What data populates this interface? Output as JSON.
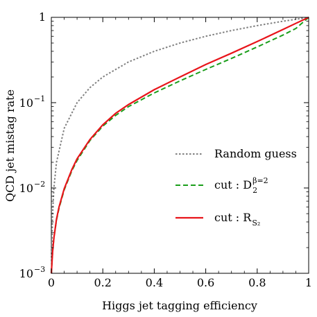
{
  "chart_data": {
    "type": "line",
    "title": "",
    "xlabel": "Higgs jet tagging efficiency",
    "ylabel": "QCD jet mistag rate",
    "xlim": [
      0,
      1
    ],
    "ylim": [
      0.001,
      1
    ],
    "yscale": "log",
    "grid": false,
    "legend_placement": "center-right",
    "x_tick_labels": [
      "0",
      "0.2",
      "0.4",
      "0.6",
      "0.8",
      "1"
    ],
    "y_tick_labels": [
      "10^{-3}",
      "10^{-2}",
      "10^{-1}",
      "1"
    ],
    "series": [
      {
        "name": "Random guess",
        "label_text": "Random guess",
        "label_suffix": "",
        "color": "#808080",
        "style": "dotted",
        "x": [
          0.001,
          0.002,
          0.005,
          0.01,
          0.02,
          0.05,
          0.1,
          0.15,
          0.2,
          0.3,
          0.4,
          0.5,
          0.6,
          0.7,
          0.8,
          0.9,
          1.0
        ],
        "y": [
          0.001,
          0.002,
          0.005,
          0.01,
          0.02,
          0.05,
          0.1,
          0.15,
          0.2,
          0.3,
          0.4,
          0.5,
          0.6,
          0.7,
          0.8,
          0.9,
          1.0
        ]
      },
      {
        "name": "cut : D_2^{β=2}",
        "label_text": "cut : D",
        "label_sub": "2",
        "label_sup": "β=2",
        "color": "#1a9e1a",
        "style": "dashed",
        "x": [
          0.0,
          0.005,
          0.01,
          0.02,
          0.03,
          0.05,
          0.08,
          0.1,
          0.15,
          0.2,
          0.25,
          0.3,
          0.4,
          0.5,
          0.6,
          0.7,
          0.8,
          0.9,
          0.95,
          1.0
        ],
        "y": [
          0.001,
          0.0018,
          0.0026,
          0.0042,
          0.0058,
          0.0095,
          0.016,
          0.021,
          0.036,
          0.053,
          0.071,
          0.09,
          0.13,
          0.18,
          0.245,
          0.33,
          0.45,
          0.62,
          0.74,
          1.0
        ]
      },
      {
        "name": "cut : R_{S_2}",
        "label_text": "cut : R",
        "label_sub": "S₂",
        "label_sup": "",
        "color": "#e8141a",
        "style": "solid",
        "x": [
          0.0,
          0.005,
          0.01,
          0.02,
          0.03,
          0.05,
          0.08,
          0.1,
          0.15,
          0.2,
          0.25,
          0.3,
          0.4,
          0.5,
          0.6,
          0.7,
          0.8,
          0.9,
          0.95,
          1.0
        ],
        "y": [
          0.001,
          0.0018,
          0.0026,
          0.0043,
          0.006,
          0.0098,
          0.0165,
          0.022,
          0.037,
          0.055,
          0.075,
          0.095,
          0.142,
          0.2,
          0.28,
          0.38,
          0.52,
          0.72,
          0.85,
          1.0
        ]
      }
    ]
  }
}
